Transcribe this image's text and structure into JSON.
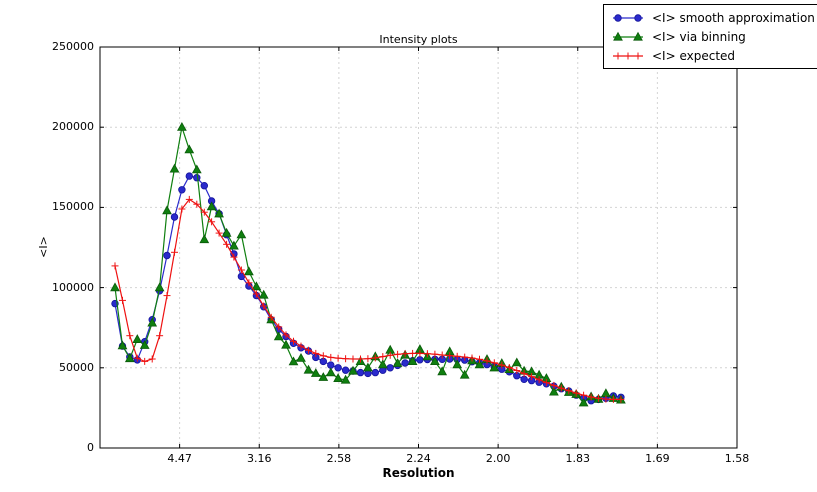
{
  "chart_data": {
    "type": "line",
    "title": "Intensity plots",
    "xlabel": "Resolution",
    "ylabel": "<I>",
    "grid": true,
    "legend_position": "upper right",
    "x_axis": {
      "scale": "1/d^2",
      "range": [
        0,
        0.4
      ],
      "ticks": [
        {
          "pos": 0.05,
          "label": "4.47"
        },
        {
          "pos": 0.1,
          "label": "3.16"
        },
        {
          "pos": 0.15,
          "label": "2.58"
        },
        {
          "pos": 0.2,
          "label": "2.24"
        },
        {
          "pos": 0.25,
          "label": "2.00"
        },
        {
          "pos": 0.3,
          "label": "1.83"
        },
        {
          "pos": 0.35,
          "label": "1.69"
        },
        {
          "pos": 0.4,
          "label": "1.58"
        }
      ]
    },
    "y_axis": {
      "range": [
        0,
        250000
      ],
      "ticks": [
        {
          "pos": 0,
          "label": "0"
        },
        {
          "pos": 50000,
          "label": "50000"
        },
        {
          "pos": 100000,
          "label": "100000"
        },
        {
          "pos": 150000,
          "label": "150000"
        },
        {
          "pos": 200000,
          "label": "200000"
        },
        {
          "pos": 250000,
          "label": "250000"
        }
      ]
    },
    "x": [
      0.0094,
      0.0141,
      0.0187,
      0.0234,
      0.0281,
      0.0328,
      0.0374,
      0.0421,
      0.0468,
      0.0514,
      0.0561,
      0.0608,
      0.0655,
      0.0701,
      0.0748,
      0.0795,
      0.0841,
      0.0888,
      0.0935,
      0.0982,
      0.1028,
      0.1075,
      0.1122,
      0.1168,
      0.1215,
      0.1262,
      0.1309,
      0.1355,
      0.1402,
      0.1449,
      0.1495,
      0.1542,
      0.1589,
      0.1636,
      0.1682,
      0.1729,
      0.1776,
      0.1822,
      0.1869,
      0.1916,
      0.1963,
      0.2009,
      0.2056,
      0.2103,
      0.2149,
      0.2196,
      0.2243,
      0.229,
      0.2336,
      0.2383,
      0.243,
      0.2476,
      0.2523,
      0.257,
      0.2617,
      0.2663,
      0.271,
      0.2757,
      0.2803,
      0.285,
      0.2897,
      0.2944,
      0.299,
      0.3037,
      0.3084,
      0.313,
      0.3177,
      0.3224,
      0.3271
    ],
    "series": [
      {
        "name": "<I> smooth approximation",
        "color": "#2a2acc",
        "edge": "#14149b",
        "marker": "circle",
        "values": [
          90000,
          63500,
          56800,
          54900,
          66300,
          80000,
          98000,
          120000,
          144000,
          161000,
          169500,
          168500,
          163500,
          154000,
          146000,
          133000,
          121000,
          107000,
          101000,
          95000,
          88000,
          80000,
          74000,
          69500,
          65300,
          62500,
          60500,
          56500,
          54000,
          51700,
          50000,
          48500,
          48000,
          47000,
          46500,
          47000,
          48500,
          50000,
          51500,
          53000,
          54400,
          55000,
          55200,
          55300,
          55300,
          55500,
          55200,
          54800,
          53800,
          53000,
          52000,
          50800,
          49100,
          47500,
          45100,
          42800,
          42000,
          41000,
          40000,
          38500,
          37000,
          35500,
          33000,
          31000,
          29500,
          30300,
          31000,
          32400,
          31600
        ]
      },
      {
        "name": "<I> via binning",
        "color": "#0f7f0f",
        "edge": "#0a5a0a",
        "marker": "triangle",
        "values": [
          100000,
          63800,
          55800,
          67700,
          64000,
          78000,
          100000,
          148000,
          174000,
          200000,
          186000,
          173500,
          130000,
          150500,
          146000,
          134000,
          126000,
          133000,
          110000,
          100600,
          95400,
          80000,
          69400,
          64200,
          53800,
          56000,
          48600,
          46600,
          44100,
          47000,
          43400,
          42400,
          48000,
          54000,
          50000,
          57000,
          52000,
          61100,
          52800,
          58000,
          54000,
          61500,
          56900,
          54000,
          47600,
          60100,
          52000,
          45500,
          54400,
          52000,
          55300,
          50000,
          52800,
          49000,
          53200,
          48000,
          47600,
          45500,
          43400,
          35000,
          38000,
          34700,
          33500,
          28200,
          32000,
          30500,
          34000,
          31000,
          30000
        ]
      },
      {
        "name": "<I> expected",
        "color": "#ee1111",
        "edge": "#ee1111",
        "marker": "plus",
        "values": [
          113500,
          92000,
          70000,
          56000,
          54000,
          55500,
          70000,
          95000,
          122000,
          149000,
          155000,
          152000,
          147000,
          141000,
          134000,
          127000,
          119000,
          111000,
          103000,
          96000,
          88500,
          81500,
          75500,
          70500,
          66500,
          63500,
          61000,
          59000,
          57500,
          56500,
          56000,
          55700,
          55500,
          55500,
          55700,
          56200,
          57000,
          57800,
          58400,
          58800,
          59000,
          59000,
          58800,
          58500,
          58000,
          57600,
          57200,
          56700,
          56100,
          55300,
          54300,
          53100,
          51700,
          50100,
          48300,
          46400,
          44500,
          42600,
          40800,
          39000,
          37300,
          35700,
          34200,
          32900,
          31800,
          31000,
          30500,
          30300,
          30300
        ]
      }
    ],
    "colors": {
      "grid": "#d4d4d4",
      "axis": "#000000"
    }
  }
}
